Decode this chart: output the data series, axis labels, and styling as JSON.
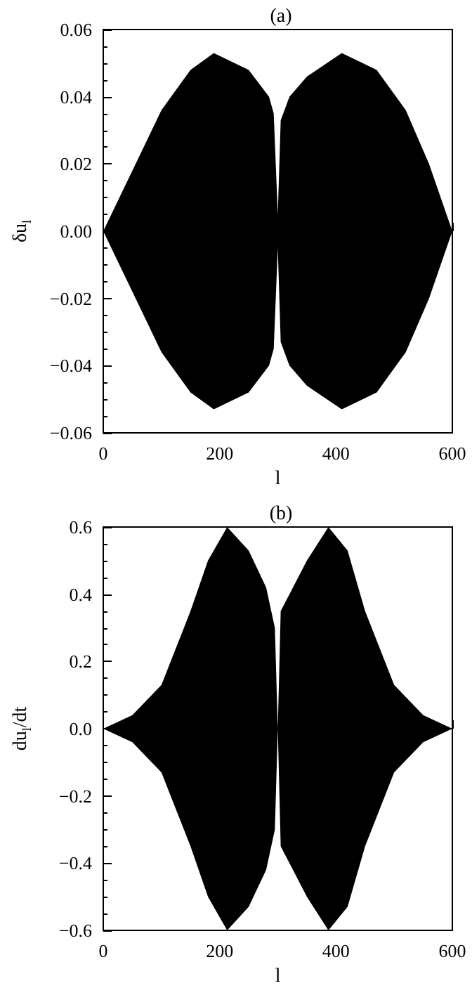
{
  "chart_data": [
    {
      "type": "area",
      "title": "(a)",
      "xlabel": "l",
      "ylabel": "δu$_{l}$",
      "series": [
        {
          "color": "#000000",
          "x": [
            0,
            50,
            100,
            150,
            190,
            250,
            285,
            293,
            300,
            305,
            320,
            350,
            410,
            470,
            520,
            560,
            600
          ],
          "values": [
            0,
            0.018,
            0.036,
            0.048,
            0.053,
            0.048,
            0.04,
            0.035,
            0.005,
            0.033,
            0.04,
            0.046,
            0.053,
            0.048,
            0.036,
            0.02,
            0
          ]
        },
        {
          "color": "#000000",
          "x": [
            0,
            50,
            100,
            150,
            190,
            250,
            285,
            293,
            300,
            305,
            320,
            350,
            410,
            470,
            520,
            560,
            600
          ],
          "values": [
            0,
            -0.018,
            -0.036,
            -0.048,
            -0.053,
            -0.048,
            -0.04,
            -0.035,
            -0.005,
            -0.033,
            -0.04,
            -0.046,
            -0.053,
            -0.048,
            -0.036,
            -0.02,
            0
          ]
        }
      ],
      "xlim": [
        0,
        600
      ],
      "xticks": [
        0,
        200,
        400,
        600
      ],
      "ylim": [
        -0.06,
        0.06
      ],
      "yticks": [
        {
          "value": -0.06,
          "label": "−0.06"
        },
        {
          "value": -0.04,
          "label": "−0.04"
        },
        {
          "value": -0.02,
          "label": "−0.02"
        },
        {
          "value": 0,
          "label": "0.00"
        },
        {
          "value": 0.02,
          "label": "0.02"
        },
        {
          "value": 0.04,
          "label": "0.04"
        },
        {
          "value": 0.06,
          "label": "0.06"
        }
      ]
    },
    {
      "type": "area",
      "title": "(b)",
      "xlabel": "l",
      "ylabel": "du$_{l}$/dt",
      "series": [
        {
          "color": "#000000",
          "x": [
            0,
            50,
            100,
            150,
            180,
            213,
            250,
            280,
            295,
            300,
            305,
            320,
            350,
            387,
            420,
            450,
            500,
            550,
            600
          ],
          "values": [
            0,
            0.04,
            0.13,
            0.35,
            0.5,
            0.6,
            0.53,
            0.42,
            0.3,
            0.0,
            0.35,
            0.4,
            0.5,
            0.6,
            0.53,
            0.35,
            0.13,
            0.04,
            0
          ]
        },
        {
          "color": "#000000",
          "x": [
            0,
            50,
            100,
            150,
            180,
            213,
            250,
            280,
            295,
            300,
            305,
            320,
            350,
            387,
            420,
            450,
            500,
            550,
            600
          ],
          "values": [
            0,
            -0.04,
            -0.13,
            -0.35,
            -0.5,
            -0.6,
            -0.53,
            -0.42,
            -0.3,
            0.0,
            -0.35,
            -0.4,
            -0.5,
            -0.6,
            -0.53,
            -0.35,
            -0.13,
            -0.04,
            0
          ]
        }
      ],
      "xlim": [
        0,
        600
      ],
      "xticks": [
        0,
        200,
        400,
        600
      ],
      "ylim": [
        -0.6,
        0.6
      ],
      "yticks": [
        {
          "value": -0.6,
          "label": "−0.6"
        },
        {
          "value": -0.4,
          "label": "−0.4"
        },
        {
          "value": -0.2,
          "label": "−0.2"
        },
        {
          "value": 0,
          "label": "0.0"
        },
        {
          "value": 0.2,
          "label": "0.2"
        },
        {
          "value": 0.4,
          "label": "0.4"
        },
        {
          "value": 0.6,
          "label": "0.6"
        }
      ]
    }
  ]
}
